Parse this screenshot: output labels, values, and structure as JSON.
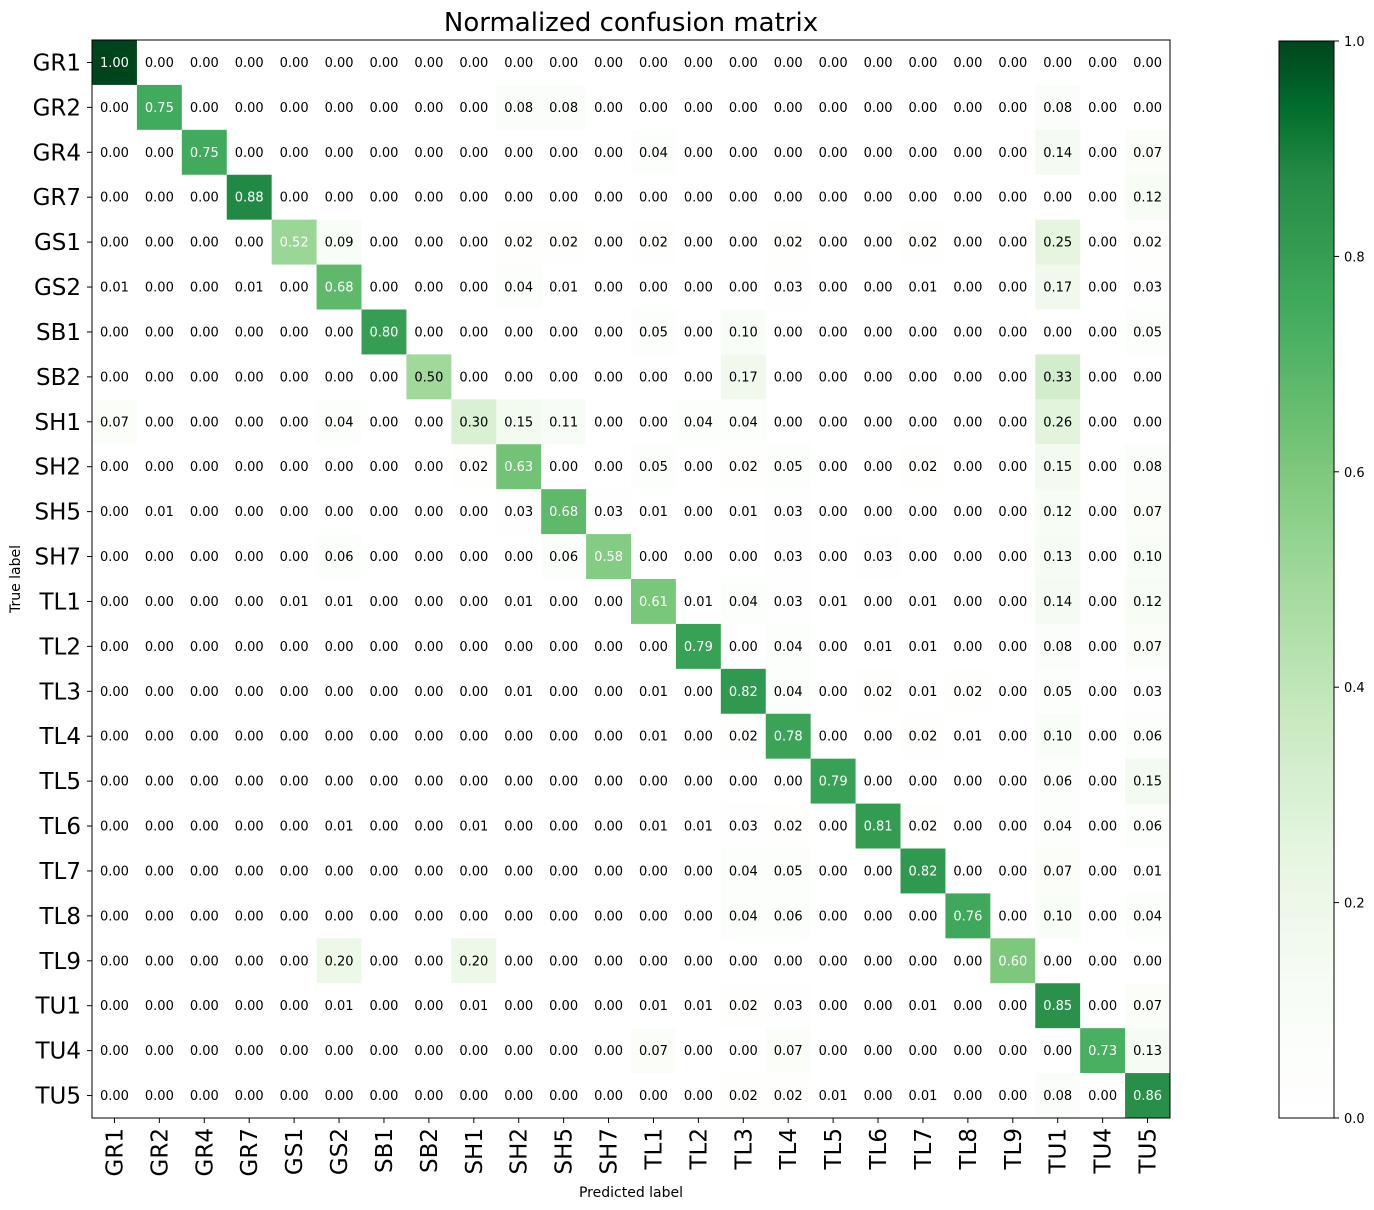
{
  "chart_data": {
    "type": "heatmap",
    "title": "Normalized confusion matrix",
    "xlabel": "Predicted label",
    "ylabel": "True label",
    "labels": [
      "GR1",
      "GR2",
      "GR4",
      "GR7",
      "GS1",
      "GS2",
      "SB1",
      "SB2",
      "SH1",
      "SH2",
      "SH5",
      "SH7",
      "TL1",
      "TL2",
      "TL3",
      "TL4",
      "TL5",
      "TL6",
      "TL7",
      "TL8",
      "TL9",
      "TU1",
      "TU4",
      "TU5"
    ],
    "matrix": [
      [
        1.0,
        0.0,
        0.0,
        0.0,
        0.0,
        0.0,
        0.0,
        0.0,
        0.0,
        0.0,
        0.0,
        0.0,
        0.0,
        0.0,
        0.0,
        0.0,
        0.0,
        0.0,
        0.0,
        0.0,
        0.0,
        0.0,
        0.0,
        0.0
      ],
      [
        0.0,
        0.75,
        0.0,
        0.0,
        0.0,
        0.0,
        0.0,
        0.0,
        0.0,
        0.08,
        0.08,
        0.0,
        0.0,
        0.0,
        0.0,
        0.0,
        0.0,
        0.0,
        0.0,
        0.0,
        0.0,
        0.08,
        0.0,
        0.0
      ],
      [
        0.0,
        0.0,
        0.75,
        0.0,
        0.0,
        0.0,
        0.0,
        0.0,
        0.0,
        0.0,
        0.0,
        0.0,
        0.04,
        0.0,
        0.0,
        0.0,
        0.0,
        0.0,
        0.0,
        0.0,
        0.0,
        0.14,
        0.0,
        0.07
      ],
      [
        0.0,
        0.0,
        0.0,
        0.88,
        0.0,
        0.0,
        0.0,
        0.0,
        0.0,
        0.0,
        0.0,
        0.0,
        0.0,
        0.0,
        0.0,
        0.0,
        0.0,
        0.0,
        0.0,
        0.0,
        0.0,
        0.0,
        0.0,
        0.12
      ],
      [
        0.0,
        0.0,
        0.0,
        0.0,
        0.52,
        0.09,
        0.0,
        0.0,
        0.0,
        0.02,
        0.02,
        0.0,
        0.02,
        0.0,
        0.0,
        0.02,
        0.0,
        0.0,
        0.02,
        0.0,
        0.0,
        0.25,
        0.0,
        0.02
      ],
      [
        0.01,
        0.0,
        0.0,
        0.01,
        0.0,
        0.68,
        0.0,
        0.0,
        0.0,
        0.04,
        0.01,
        0.0,
        0.0,
        0.0,
        0.0,
        0.03,
        0.0,
        0.0,
        0.01,
        0.0,
        0.0,
        0.17,
        0.0,
        0.03
      ],
      [
        0.0,
        0.0,
        0.0,
        0.0,
        0.0,
        0.0,
        0.8,
        0.0,
        0.0,
        0.0,
        0.0,
        0.0,
        0.05,
        0.0,
        0.1,
        0.0,
        0.0,
        0.0,
        0.0,
        0.0,
        0.0,
        0.0,
        0.0,
        0.05
      ],
      [
        0.0,
        0.0,
        0.0,
        0.0,
        0.0,
        0.0,
        0.0,
        0.5,
        0.0,
        0.0,
        0.0,
        0.0,
        0.0,
        0.0,
        0.17,
        0.0,
        0.0,
        0.0,
        0.0,
        0.0,
        0.0,
        0.33,
        0.0,
        0.0
      ],
      [
        0.07,
        0.0,
        0.0,
        0.0,
        0.0,
        0.04,
        0.0,
        0.0,
        0.3,
        0.15,
        0.11,
        0.0,
        0.0,
        0.04,
        0.04,
        0.0,
        0.0,
        0.0,
        0.0,
        0.0,
        0.0,
        0.26,
        0.0,
        0.0
      ],
      [
        0.0,
        0.0,
        0.0,
        0.0,
        0.0,
        0.0,
        0.0,
        0.0,
        0.02,
        0.63,
        0.0,
        0.0,
        0.05,
        0.0,
        0.02,
        0.05,
        0.0,
        0.0,
        0.02,
        0.0,
        0.0,
        0.15,
        0.0,
        0.08
      ],
      [
        0.0,
        0.01,
        0.0,
        0.0,
        0.0,
        0.0,
        0.0,
        0.0,
        0.0,
        0.03,
        0.68,
        0.03,
        0.01,
        0.0,
        0.01,
        0.03,
        0.0,
        0.0,
        0.0,
        0.0,
        0.0,
        0.12,
        0.0,
        0.07
      ],
      [
        0.0,
        0.0,
        0.0,
        0.0,
        0.0,
        0.06,
        0.0,
        0.0,
        0.0,
        0.0,
        0.06,
        0.58,
        0.0,
        0.0,
        0.0,
        0.03,
        0.0,
        0.03,
        0.0,
        0.0,
        0.0,
        0.13,
        0.0,
        0.1
      ],
      [
        0.0,
        0.0,
        0.0,
        0.0,
        0.01,
        0.01,
        0.0,
        0.0,
        0.0,
        0.01,
        0.0,
        0.0,
        0.61,
        0.01,
        0.04,
        0.03,
        0.01,
        0.0,
        0.01,
        0.0,
        0.0,
        0.14,
        0.0,
        0.12
      ],
      [
        0.0,
        0.0,
        0.0,
        0.0,
        0.0,
        0.0,
        0.0,
        0.0,
        0.0,
        0.0,
        0.0,
        0.0,
        0.0,
        0.79,
        0.0,
        0.04,
        0.0,
        0.01,
        0.01,
        0.0,
        0.0,
        0.08,
        0.0,
        0.07
      ],
      [
        0.0,
        0.0,
        0.0,
        0.0,
        0.0,
        0.0,
        0.0,
        0.0,
        0.0,
        0.01,
        0.0,
        0.0,
        0.01,
        0.0,
        0.82,
        0.04,
        0.0,
        0.02,
        0.01,
        0.02,
        0.0,
        0.05,
        0.0,
        0.03
      ],
      [
        0.0,
        0.0,
        0.0,
        0.0,
        0.0,
        0.0,
        0.0,
        0.0,
        0.0,
        0.0,
        0.0,
        0.0,
        0.01,
        0.0,
        0.02,
        0.78,
        0.0,
        0.0,
        0.02,
        0.01,
        0.0,
        0.1,
        0.0,
        0.06
      ],
      [
        0.0,
        0.0,
        0.0,
        0.0,
        0.0,
        0.0,
        0.0,
        0.0,
        0.0,
        0.0,
        0.0,
        0.0,
        0.0,
        0.0,
        0.0,
        0.0,
        0.79,
        0.0,
        0.0,
        0.0,
        0.0,
        0.06,
        0.0,
        0.15
      ],
      [
        0.0,
        0.0,
        0.0,
        0.0,
        0.0,
        0.01,
        0.0,
        0.0,
        0.01,
        0.0,
        0.0,
        0.0,
        0.01,
        0.01,
        0.03,
        0.02,
        0.0,
        0.81,
        0.02,
        0.0,
        0.0,
        0.04,
        0.0,
        0.06
      ],
      [
        0.0,
        0.0,
        0.0,
        0.0,
        0.0,
        0.0,
        0.0,
        0.0,
        0.0,
        0.0,
        0.0,
        0.0,
        0.0,
        0.0,
        0.04,
        0.05,
        0.0,
        0.0,
        0.82,
        0.0,
        0.0,
        0.07,
        0.0,
        0.01
      ],
      [
        0.0,
        0.0,
        0.0,
        0.0,
        0.0,
        0.0,
        0.0,
        0.0,
        0.0,
        0.0,
        0.0,
        0.0,
        0.0,
        0.0,
        0.04,
        0.06,
        0.0,
        0.0,
        0.0,
        0.76,
        0.0,
        0.1,
        0.0,
        0.04
      ],
      [
        0.0,
        0.0,
        0.0,
        0.0,
        0.0,
        0.2,
        0.0,
        0.0,
        0.2,
        0.0,
        0.0,
        0.0,
        0.0,
        0.0,
        0.0,
        0.0,
        0.0,
        0.0,
        0.0,
        0.0,
        0.6,
        0.0,
        0.0,
        0.0
      ],
      [
        0.0,
        0.0,
        0.0,
        0.0,
        0.0,
        0.01,
        0.0,
        0.0,
        0.01,
        0.0,
        0.0,
        0.0,
        0.01,
        0.01,
        0.02,
        0.03,
        0.0,
        0.0,
        0.01,
        0.0,
        0.0,
        0.85,
        0.0,
        0.07
      ],
      [
        0.0,
        0.0,
        0.0,
        0.0,
        0.0,
        0.0,
        0.0,
        0.0,
        0.0,
        0.0,
        0.0,
        0.0,
        0.07,
        0.0,
        0.0,
        0.07,
        0.0,
        0.0,
        0.0,
        0.0,
        0.0,
        0.0,
        0.73,
        0.13
      ],
      [
        0.0,
        0.0,
        0.0,
        0.0,
        0.0,
        0.0,
        0.0,
        0.0,
        0.0,
        0.0,
        0.0,
        0.0,
        0.0,
        0.0,
        0.02,
        0.02,
        0.01,
        0.0,
        0.01,
        0.0,
        0.0,
        0.08,
        0.0,
        0.86
      ]
    ],
    "colormap": "Greens",
    "color_range": [
      0.0,
      1.0
    ],
    "colorbar_ticks": [
      0.0,
      0.2,
      0.4,
      0.6,
      0.8,
      1.0
    ],
    "colorbar_tick_labels": [
      "0.0",
      "0.2",
      "0.4",
      "0.6",
      "0.8",
      "1.0"
    ],
    "colors": {
      "text_dark": "#000000",
      "text_light": "#ffffff",
      "cmap_low": "#f7fcf5",
      "cmap_high": "#00441b"
    },
    "grid": false,
    "legend": "colorbar-right"
  }
}
